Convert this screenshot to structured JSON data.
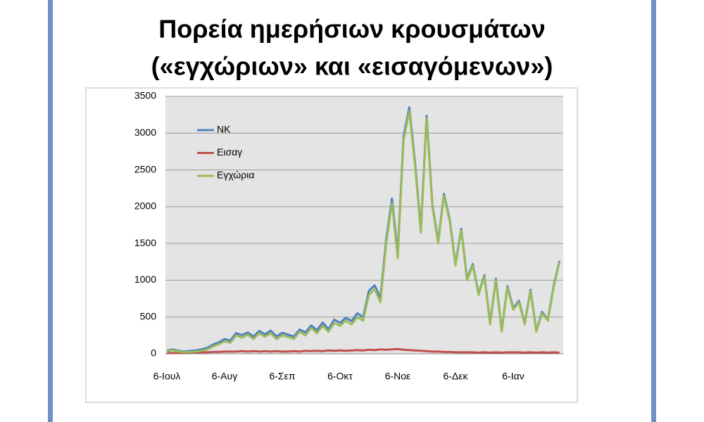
{
  "chart_data": {
    "type": "line",
    "title": [
      "Πορεία ημερήσιων κρουσμάτων",
      "(«εγχώριων» και «εισαγόμενων»)"
    ],
    "categories": [
      "6-Ιουλ",
      null,
      null,
      null,
      null,
      null,
      null,
      null,
      null,
      null,
      "6-Αυγ",
      null,
      null,
      null,
      null,
      null,
      null,
      null,
      null,
      null,
      "6-Σεπ",
      null,
      null,
      null,
      null,
      null,
      null,
      null,
      null,
      null,
      "6-Οκτ",
      null,
      null,
      null,
      null,
      null,
      null,
      null,
      null,
      null,
      "6-Νοε",
      null,
      null,
      null,
      null,
      null,
      null,
      null,
      null,
      null,
      "6-Δεκ",
      null,
      null,
      null,
      null,
      null,
      null,
      null,
      null,
      null,
      "6-Ιαν",
      null,
      null,
      null,
      null,
      null,
      null,
      null,
      null
    ],
    "series": [
      {
        "name": "ΝΚ",
        "color": "#4f81bd",
        "values": [
          40,
          60,
          40,
          30,
          40,
          45,
          60,
          80,
          125,
          155,
          200,
          180,
          280,
          255,
          290,
          235,
          310,
          265,
          315,
          235,
          285,
          260,
          235,
          330,
          290,
          385,
          320,
          425,
          335,
          465,
          420,
          490,
          445,
          550,
          495,
          855,
          930,
          760,
          1555,
          2110,
          1365,
          2955,
          3350,
          2595,
          1690,
          3235,
          2030,
          1530,
          2175,
          1825,
          1220,
          1700,
          1020,
          1220,
          815,
          1070,
          415,
          1020,
          315,
          920,
          620,
          720,
          415,
          870,
          315,
          570,
          465,
          920,
          1265
        ]
      },
      {
        "name": "Εισαγ",
        "color": "#c0504d",
        "values": [
          10,
          10,
          10,
          10,
          15,
          15,
          20,
          20,
          25,
          25,
          30,
          30,
          30,
          35,
          30,
          35,
          30,
          35,
          30,
          35,
          30,
          30,
          35,
          30,
          40,
          35,
          40,
          35,
          45,
          40,
          45,
          40,
          45,
          50,
          45,
          55,
          50,
          60,
          55,
          60,
          65,
          55,
          50,
          45,
          40,
          35,
          30,
          30,
          25,
          25,
          20,
          20,
          20,
          20,
          15,
          20,
          15,
          20,
          15,
          20,
          20,
          20,
          15,
          20,
          15,
          20,
          15,
          20,
          15
        ]
      },
      {
        "name": "Εγχώρια",
        "color": "#9bbb59",
        "values": [
          30,
          50,
          30,
          20,
          25,
          30,
          40,
          60,
          100,
          130,
          170,
          150,
          250,
          220,
          260,
          200,
          280,
          230,
          280,
          200,
          250,
          230,
          200,
          300,
          250,
          350,
          280,
          380,
          300,
          420,
          380,
          450,
          400,
          500,
          450,
          800,
          880,
          700,
          1500,
          2050,
          1300,
          2900,
          3300,
          2550,
          1650,
          3200,
          2000,
          1500,
          2150,
          1800,
          1200,
          1680,
          1000,
          1200,
          800,
          1050,
          400,
          1000,
          300,
          900,
          600,
          700,
          400,
          850,
          300,
          550,
          450,
          900,
          1250
        ]
      }
    ],
    "ylim": [
      0,
      3500
    ],
    "yticks": [
      0,
      500,
      1000,
      1500,
      2000,
      2500,
      3000,
      3500
    ],
    "grid": true,
    "legend": "top-left"
  }
}
